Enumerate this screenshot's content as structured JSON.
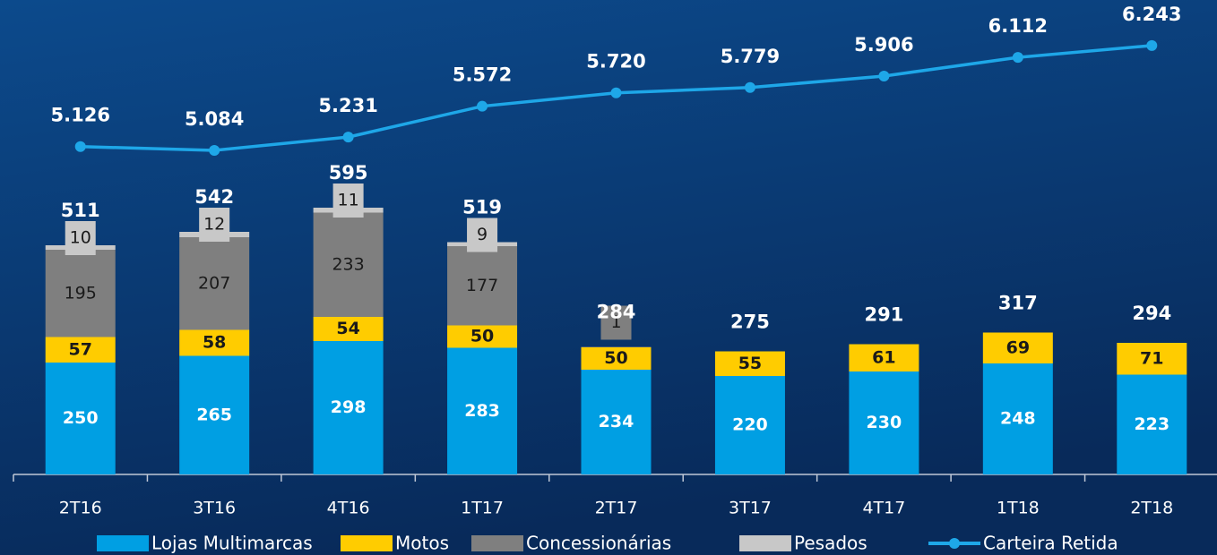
{
  "chart_data": {
    "type": "bar",
    "stacked": true,
    "categories": [
      "2T16",
      "3T16",
      "4T16",
      "1T17",
      "2T17",
      "3T17",
      "4T17",
      "1T18",
      "2T18"
    ],
    "series": [
      {
        "name": "Lojas Multimarcas",
        "color": "#009fe3",
        "values": [
          250,
          265,
          298,
          283,
          234,
          220,
          230,
          248,
          223
        ]
      },
      {
        "name": "Motos",
        "color": "#ffcc00",
        "values": [
          57,
          58,
          54,
          50,
          50,
          55,
          61,
          69,
          71
        ]
      },
      {
        "name": "Concessionárias",
        "color": "#7f7f7f",
        "values": [
          195,
          207,
          233,
          177,
          1,
          null,
          null,
          null,
          null
        ]
      },
      {
        "name": "Pesados",
        "color": "#c8c8c8",
        "values": [
          10,
          12,
          11,
          9,
          null,
          null,
          null,
          null,
          null
        ]
      },
      {
        "name": "Carteira Retida",
        "type": "line",
        "axis": "y2",
        "color": "#1ea7e8",
        "values": [
          5126,
          5084,
          5231,
          5572,
          5720,
          5779,
          5906,
          6112,
          6243
        ],
        "value_labels": [
          "5.126",
          "5.084",
          "5.231",
          "5.572",
          "5.720",
          "5.779",
          "5.906",
          "6.112",
          "6.243"
        ]
      }
    ],
    "totals": [
      511,
      542,
      595,
      519,
      284,
      275,
      291,
      317,
      294
    ],
    "ylim": [
      0,
      1000
    ],
    "y2lim": [
      1500,
      6450
    ],
    "legend": "bottom"
  }
}
